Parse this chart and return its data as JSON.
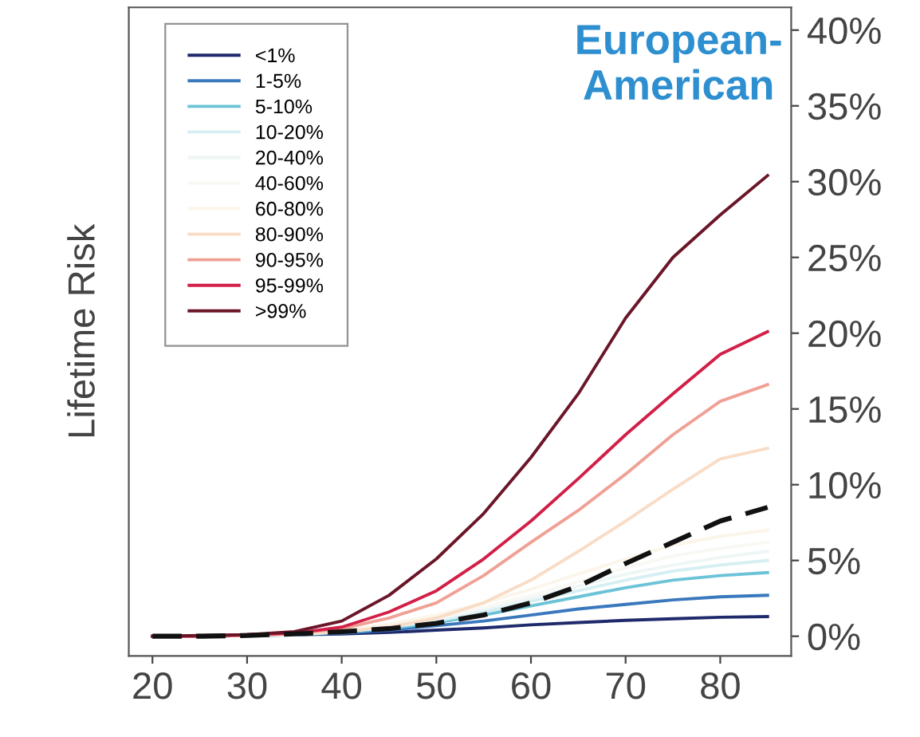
{
  "chart_data": {
    "type": "line",
    "title": "European-\nAmerican",
    "ylabel": "Lifetime Risk",
    "x": [
      20,
      25,
      30,
      35,
      40,
      45,
      50,
      55,
      60,
      65,
      70,
      75,
      80,
      85
    ],
    "xlim": [
      17.5,
      87.5
    ],
    "xticks": [
      20,
      30,
      40,
      50,
      60,
      70,
      80
    ],
    "ylim": [
      -1.3,
      41.5
    ],
    "yticks": [
      {
        "value": 0,
        "label": "0%"
      },
      {
        "value": 5,
        "label": "5%"
      },
      {
        "value": 10,
        "label": "10%"
      },
      {
        "value": 15,
        "label": "15%"
      },
      {
        "value": 20,
        "label": "20%"
      },
      {
        "value": 25,
        "label": "25%"
      },
      {
        "value": 30,
        "label": "30%"
      },
      {
        "value": 35,
        "label": "35%"
      },
      {
        "value": 40,
        "label": "40%"
      }
    ],
    "grid": false,
    "legend": "top left",
    "marker": "none",
    "line_style": "solid",
    "series": [
      {
        "name": "<1%",
        "color": "#1f2a6b",
        "values": [
          0,
          0,
          0.05,
          0.1,
          0.15,
          0.25,
          0.4,
          0.55,
          0.75,
          0.9,
          1.05,
          1.15,
          1.25,
          1.3
        ]
      },
      {
        "name": "1-5%",
        "color": "#3a78bd",
        "values": [
          0,
          0,
          0.05,
          0.1,
          0.2,
          0.4,
          0.7,
          1.0,
          1.4,
          1.8,
          2.1,
          2.4,
          2.6,
          2.7
        ]
      },
      {
        "name": "5-10%",
        "color": "#6cc3d8",
        "values": [
          0,
          0,
          0.05,
          0.1,
          0.25,
          0.5,
          0.9,
          1.4,
          2.0,
          2.6,
          3.2,
          3.7,
          4.0,
          4.2
        ]
      },
      {
        "name": "10-20%",
        "color": "#d6eff3",
        "values": [
          0,
          0,
          0.05,
          0.1,
          0.3,
          0.6,
          1.0,
          1.6,
          2.3,
          3.0,
          3.7,
          4.3,
          4.7,
          5.0
        ]
      },
      {
        "name": "20-40%",
        "color": "#eef6f6",
        "values": [
          0,
          0,
          0.05,
          0.15,
          0.3,
          0.65,
          1.1,
          1.8,
          2.5,
          3.3,
          4.1,
          4.7,
          5.2,
          5.6
        ]
      },
      {
        "name": "40-60%",
        "color": "#f8f8f4",
        "values": [
          0,
          0,
          0.05,
          0.15,
          0.3,
          0.7,
          1.2,
          1.9,
          2.7,
          3.6,
          4.5,
          5.3,
          5.8,
          6.2
        ]
      },
      {
        "name": "60-80%",
        "color": "#fbf5ea",
        "values": [
          0,
          0,
          0.05,
          0.15,
          0.35,
          0.8,
          1.4,
          2.2,
          3.1,
          4.1,
          5.1,
          6.0,
          6.6,
          7.0
        ]
      },
      {
        "name": "80-90%",
        "color": "#f9dcc6",
        "values": [
          0,
          0,
          0.05,
          0.15,
          0.3,
          0.6,
          1.2,
          2.2,
          3.7,
          5.6,
          7.6,
          9.7,
          11.7,
          12.4
        ]
      },
      {
        "name": "90-95%",
        "color": "#f0a095",
        "values": [
          0,
          0,
          0.05,
          0.2,
          0.5,
          1.2,
          2.2,
          4.0,
          6.2,
          8.3,
          10.7,
          13.3,
          15.5,
          16.6
        ]
      },
      {
        "name": "95-99%",
        "color": "#d21f47",
        "values": [
          0,
          0,
          0.1,
          0.2,
          0.6,
          1.6,
          3.0,
          5.1,
          7.6,
          10.4,
          13.3,
          16.0,
          18.6,
          20.1
        ]
      },
      {
        "name": ">99%",
        "color": "#6a1628",
        "values": [
          0,
          0.05,
          0.1,
          0.3,
          1.0,
          2.7,
          5.1,
          8.1,
          11.8,
          16.0,
          21.0,
          25.0,
          27.8,
          30.4
        ]
      },
      {
        "color": "#111111",
        "line_style": "dashed",
        "values": [
          0,
          0,
          0.05,
          0.15,
          0.3,
          0.5,
          0.85,
          1.4,
          2.2,
          3.3,
          4.8,
          6.2,
          7.6,
          8.5
        ]
      }
    ]
  }
}
